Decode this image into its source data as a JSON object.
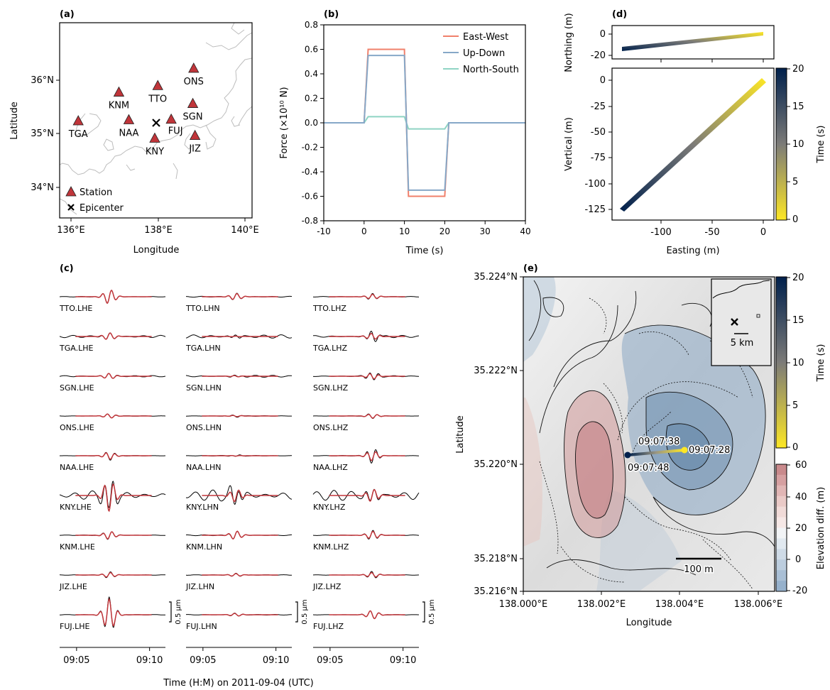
{
  "panels": {
    "a": {
      "label": "(a)",
      "xlabel": "Longitude",
      "ylabel": "Latitude",
      "xticks": [
        "136°E",
        "138°E",
        "140°E"
      ],
      "yticks": [
        "34°N",
        "35°N",
        "36°N"
      ],
      "stations": [
        {
          "name": "ONS",
          "lon": 138.95,
          "lat": 36.15
        },
        {
          "name": "TTO",
          "lon": 138.12,
          "lat": 35.83
        },
        {
          "name": "KNM",
          "lon": 137.22,
          "lat": 35.71
        },
        {
          "name": "SGN",
          "lon": 138.93,
          "lat": 35.5
        },
        {
          "name": "TGA",
          "lon": 136.28,
          "lat": 35.18
        },
        {
          "name": "NAA",
          "lon": 137.45,
          "lat": 35.2
        },
        {
          "name": "FUJ",
          "lon": 138.43,
          "lat": 35.21
        },
        {
          "name": "KNY",
          "lon": 138.05,
          "lat": 34.86
        },
        {
          "name": "JIZ",
          "lon": 138.98,
          "lat": 34.91
        }
      ],
      "epicenter": {
        "lon": 137.95,
        "lat": 35.19
      },
      "legend": {
        "station": "Station",
        "epicenter": "Epicenter"
      }
    },
    "b": {
      "label": "(b)",
      "xlabel": "Time (s)",
      "ylabel": "Force (×10¹⁰ N)",
      "xticks": [
        "-10",
        "0",
        "10",
        "20",
        "30",
        "40"
      ],
      "yticks": [
        "-0.8",
        "-0.6",
        "-0.4",
        "-0.2",
        "0.0",
        "0.2",
        "0.4",
        "0.6",
        "0.8"
      ],
      "legend": [
        "East-West",
        "Up-Down",
        "North-South"
      ]
    },
    "c": {
      "label": "(c)",
      "xlabel": "Time (H:M) on 2011-09-04 (UTC)",
      "xticks": [
        "09:05",
        "09:10"
      ],
      "scale_label": "0.5 μm",
      "columns": [
        [
          "TTO.LHE",
          "TGA.LHE",
          "SGN.LHE",
          "ONS.LHE",
          "NAA.LHE",
          "KNY.LHE",
          "KNM.LHE",
          "JIZ.LHE",
          "FUJ.LHE"
        ],
        [
          "TTO.LHN",
          "TGA.LHN",
          "SGN.LHN",
          "ONS.LHN",
          "NAA.LHN",
          "KNY.LHN",
          "KNM.LHN",
          "JIZ.LHN",
          "FUJ.LHN"
        ],
        [
          "TTO.LHZ",
          "TGA.LHZ",
          "SGN.LHZ",
          "ONS.LHZ",
          "NAA.LHZ",
          "KNY.LHZ",
          "KNM.LHZ",
          "JIZ.LHZ",
          "FUJ.LHZ"
        ]
      ]
    },
    "d": {
      "label": "(d)",
      "top_ylabel": "Northing (m)",
      "top_yticks": [
        "0",
        "-20"
      ],
      "main_ylabel": "Vertical (m)",
      "main_yticks": [
        "0",
        "-25",
        "-50",
        "-75",
        "-100",
        "-125"
      ],
      "xlabel": "Easting (m)",
      "xticks": [
        "-100",
        "-50",
        "0"
      ],
      "colorbar_label": "Time (s)",
      "colorbar_ticks": [
        "20",
        "15",
        "10",
        "5",
        "0"
      ]
    },
    "e": {
      "label": "(e)",
      "xlabel": "Longitude",
      "ylabel": "Latitude",
      "xticks": [
        "138.000°E",
        "138.002°E",
        "138.004°E",
        "138.006°E"
      ],
      "yticks": [
        "35.224°N",
        "35.222°N",
        "35.220°N",
        "35.218°N",
        "35.216°N"
      ],
      "annotations": {
        "t1": "09:07:38",
        "t2": "09:07:28",
        "t3": "09:07:48"
      },
      "scale": "100 m",
      "inset_scale": "5 km",
      "time_cbar_label": "Time (s)",
      "time_cbar_ticks": [
        "20",
        "15",
        "10",
        "5",
        "0"
      ],
      "elev_cbar_label": "Elevation diff. (m)",
      "elev_cbar_ticks": [
        "60",
        "40",
        "20",
        "0",
        "-20",
        "-40",
        "-60"
      ]
    }
  },
  "chart_data": [
    {
      "type": "scatter",
      "panel": "a",
      "xlabel": "Longitude",
      "ylabel": "Latitude",
      "xlim": [
        135.85,
        140.3
      ],
      "ylim": [
        33.4,
        37.0
      ],
      "series": [
        {
          "name": "Station",
          "points": [
            [
              138.95,
              36.15
            ],
            [
              138.12,
              35.83
            ],
            [
              137.22,
              35.71
            ],
            [
              138.93,
              35.5
            ],
            [
              136.28,
              35.18
            ],
            [
              137.45,
              35.2
            ],
            [
              138.43,
              35.21
            ],
            [
              138.05,
              34.86
            ],
            [
              138.98,
              34.91
            ]
          ]
        },
        {
          "name": "Epicenter",
          "points": [
            [
              137.95,
              35.19
            ]
          ]
        }
      ]
    },
    {
      "type": "line",
      "panel": "b",
      "xlabel": "Time (s)",
      "ylabel": "Force (×10¹⁰ N)",
      "xlim": [
        -10,
        40
      ],
      "ylim": [
        -0.8,
        0.8
      ],
      "series": [
        {
          "name": "East-West",
          "color": "#f0806b",
          "x": [
            -10,
            0,
            1,
            10,
            11,
            20,
            21,
            40
          ],
          "y": [
            0,
            0,
            0.6,
            0.6,
            -0.6,
            -0.6,
            0,
            0
          ]
        },
        {
          "name": "Up-Down",
          "color": "#86a8c8",
          "x": [
            -10,
            0,
            1,
            10,
            11,
            20,
            21,
            40
          ],
          "y": [
            0,
            0,
            0.55,
            0.55,
            -0.55,
            -0.55,
            0,
            0
          ]
        },
        {
          "name": "North-South",
          "color": "#8fd4c4",
          "x": [
            -10,
            0,
            1,
            10,
            11,
            20,
            21,
            40
          ],
          "y": [
            0,
            0,
            0.05,
            0.05,
            -0.05,
            -0.05,
            0,
            0
          ]
        }
      ]
    },
    {
      "type": "line",
      "panel": "d-top",
      "xlabel": "",
      "ylabel": "Northing (m)",
      "xlim": [
        -142,
        10
      ],
      "ylim": [
        -22,
        10
      ],
      "series": [
        {
          "x": [
            -137,
            0
          ],
          "y": [
            -13,
            0
          ]
        }
      ]
    },
    {
      "type": "line",
      "panel": "d-main",
      "xlabel": "Easting (m)",
      "ylabel": "Vertical (m)",
      "xlim": [
        -142,
        10
      ],
      "ylim": [
        -134,
        10
      ],
      "series": [
        {
          "x": [
            -137,
            0
          ],
          "y": [
            -126,
            0
          ]
        }
      ]
    },
    {
      "type": "line",
      "panel": "e",
      "xlabel": "Longitude",
      "ylabel": "Latitude",
      "xlim": [
        138.0,
        138.0064
      ],
      "ylim": [
        35.216,
        35.224
      ],
      "series": [
        {
          "x": [
            138.0042,
            138.0027
          ],
          "y": [
            35.2203,
            35.2202
          ]
        }
      ]
    }
  ],
  "colors": {
    "station": "#c0353a",
    "ew": "#f0806b",
    "ud": "#86a8c8",
    "ns": "#8fd4c4",
    "synthetic": "#c0353a",
    "time_start": "#fde725",
    "time_end": "#00204c"
  }
}
